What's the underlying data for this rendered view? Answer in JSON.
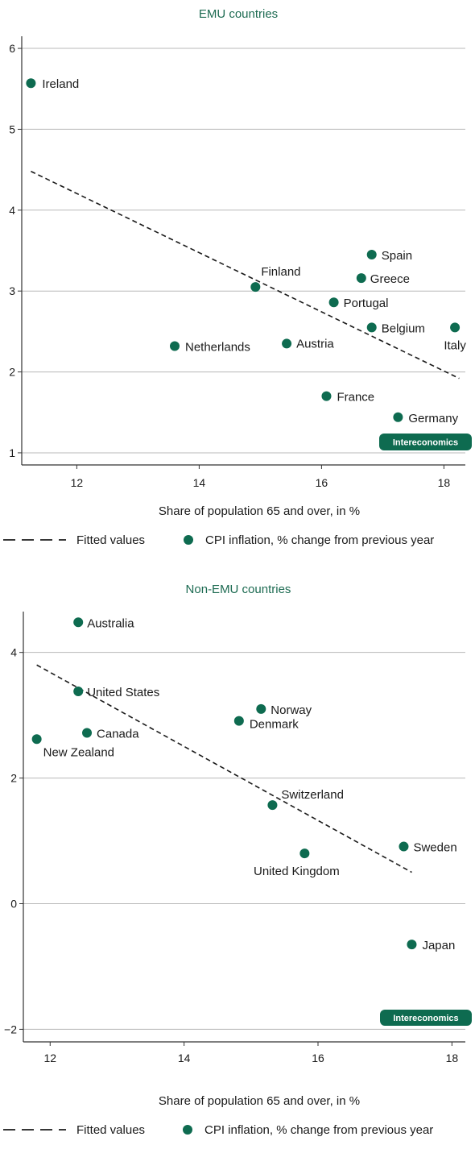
{
  "brand": {
    "name": "Intereconomics",
    "accent_color": "#0e6b50",
    "title_color": "#1d6b52",
    "grid_color": "#b8b8b8"
  },
  "chart_data": [
    {
      "type": "scatter",
      "title": "EMU countries",
      "xlabel": "Share of population 65 and over, in %",
      "ylabel": "",
      "xlim": [
        11.1,
        18.35
      ],
      "ylim": [
        0.85,
        6.15
      ],
      "xticks": [
        12,
        14,
        16,
        18
      ],
      "xtick_labels": [
        "12",
        "14",
        "16",
        "18"
      ],
      "yticks": [
        1,
        2,
        3,
        4,
        5,
        6
      ],
      "ytick_labels": [
        "1",
        "2",
        "3",
        "4",
        "5",
        "6"
      ],
      "grid": "horizontal",
      "legend_placement": "bottom",
      "legend": [
        "Fitted values",
        "CPI inflation, % change from previous year"
      ],
      "series": [
        {
          "name": "CPI inflation, % change from previous year",
          "kind": "points",
          "points": [
            {
              "label": "Ireland",
              "x": 11.25,
              "y": 5.57
            },
            {
              "label": "Netherlands",
              "x": 13.6,
              "y": 2.32
            },
            {
              "label": "Finland",
              "x": 14.92,
              "y": 3.05
            },
            {
              "label": "Austria",
              "x": 15.43,
              "y": 2.35
            },
            {
              "label": "France",
              "x": 16.08,
              "y": 1.7
            },
            {
              "label": "Portugal",
              "x": 16.2,
              "y": 2.86
            },
            {
              "label": "Greece",
              "x": 16.65,
              "y": 3.16
            },
            {
              "label": "Spain",
              "x": 16.82,
              "y": 3.45
            },
            {
              "label": "Belgium",
              "x": 16.82,
              "y": 2.55
            },
            {
              "label": "Germany",
              "x": 17.25,
              "y": 1.44
            },
            {
              "label": "Italy",
              "x": 18.18,
              "y": 2.55
            }
          ]
        },
        {
          "name": "Fitted values",
          "kind": "line",
          "points": [
            {
              "x": 11.25,
              "y": 4.48
            },
            {
              "x": 18.25,
              "y": 1.92
            }
          ]
        }
      ]
    },
    {
      "type": "scatter",
      "title": "Non-EMU countries",
      "xlabel": "Share of population 65 and over, in %",
      "ylabel": "",
      "xlim": [
        11.6,
        18.2
      ],
      "ylim": [
        -2.2,
        4.65
      ],
      "xticks": [
        12,
        14,
        16,
        18
      ],
      "xtick_labels": [
        "12",
        "14",
        "16",
        "18"
      ],
      "yticks": [
        -2,
        0,
        2,
        4
      ],
      "ytick_labels": [
        "−2",
        "0",
        "2",
        "4"
      ],
      "grid": "horizontal",
      "legend_placement": "bottom",
      "legend": [
        "Fitted values",
        "CPI inflation, % change from previous year"
      ],
      "series": [
        {
          "name": "CPI inflation, % change from previous year",
          "kind": "points",
          "points": [
            {
              "label": "New Zealand",
              "x": 11.8,
              "y": 2.62
            },
            {
              "label": "Australia",
              "x": 12.42,
              "y": 4.48
            },
            {
              "label": "United States",
              "x": 12.42,
              "y": 3.38
            },
            {
              "label": "Canada",
              "x": 12.55,
              "y": 2.72
            },
            {
              "label": "Denmark",
              "x": 14.82,
              "y": 2.91
            },
            {
              "label": "Norway",
              "x": 15.15,
              "y": 3.1
            },
            {
              "label": "Switzerland",
              "x": 15.32,
              "y": 1.57
            },
            {
              "label": "United Kingdom",
              "x": 15.8,
              "y": 0.8
            },
            {
              "label": "Sweden",
              "x": 17.28,
              "y": 0.91
            },
            {
              "label": "Japan",
              "x": 17.4,
              "y": -0.65
            }
          ]
        },
        {
          "name": "Fitted values",
          "kind": "line",
          "points": [
            {
              "x": 11.8,
              "y": 3.8
            },
            {
              "x": 17.4,
              "y": 0.5
            }
          ]
        }
      ]
    }
  ]
}
